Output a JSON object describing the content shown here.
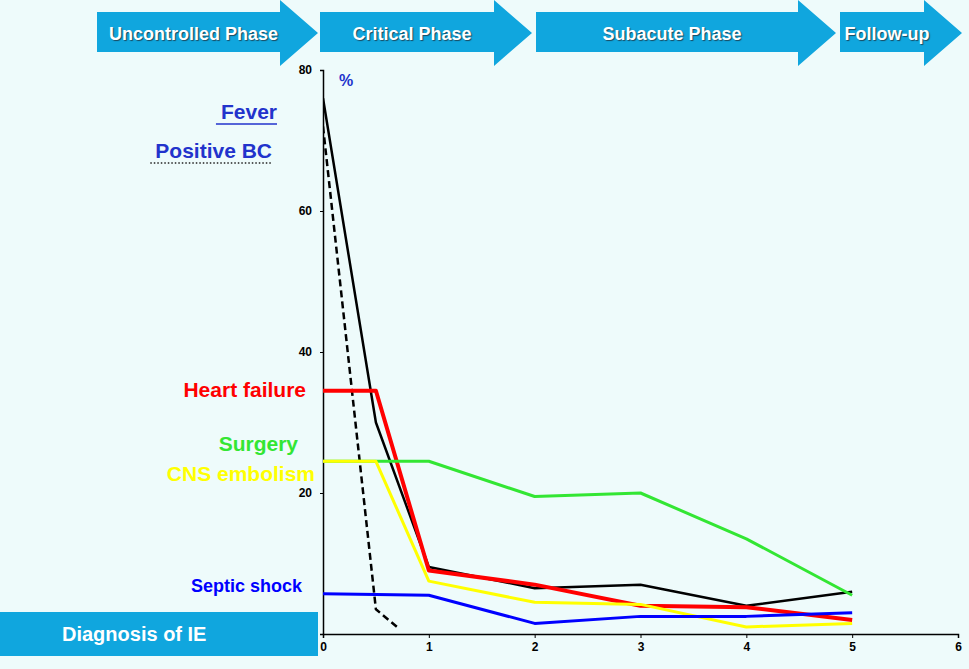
{
  "chart_data": {
    "type": "line",
    "phases": [
      "Uncontrolled Phase",
      "Critical Phase",
      "Subacute Phase",
      "Follow-up"
    ],
    "y_label": "%",
    "annotations": [
      "Diagnosis of IE"
    ],
    "xlim": [
      0,
      6
    ],
    "xticks": [
      0,
      1,
      2,
      3,
      4,
      5,
      6
    ],
    "ylim": [
      0,
      80
    ],
    "yticks": [
      20,
      40,
      60,
      80
    ],
    "series": [
      {
        "name": "Fever",
        "color": "#000000",
        "line_style": "solid",
        "x": [
          0,
          0.5,
          1,
          2,
          3,
          4,
          5
        ],
        "values": [
          76,
          30,
          9.5,
          6.5,
          7,
          4,
          6
        ]
      },
      {
        "name": "Positive BC",
        "color": "#000000",
        "line_style": "dashed",
        "x": [
          0,
          0.5,
          0.7
        ],
        "values": [
          72,
          3.5,
          1
        ]
      },
      {
        "name": "Heart failure",
        "color": "#ff0000",
        "line_style": "solid",
        "x": [
          0,
          0.5,
          1,
          2,
          3,
          4,
          5
        ],
        "values": [
          34.5,
          34.5,
          9,
          7,
          4,
          3.8,
          2
        ]
      },
      {
        "name": "Surgery",
        "color": "#33e633",
        "line_style": "solid",
        "x": [
          0,
          1,
          2,
          3,
          4,
          5
        ],
        "values": [
          24.5,
          24.5,
          19.5,
          20,
          13.5,
          5.5
        ]
      },
      {
        "name": "CNS embolism",
        "color": "#ffff00",
        "line_style": "solid",
        "x": [
          0,
          0.5,
          1,
          2,
          3,
          4,
          5
        ],
        "values": [
          24.5,
          24.5,
          7.5,
          4.5,
          4.2,
          1,
          1.5
        ]
      },
      {
        "name": "Septic shock",
        "color": "#0000ff",
        "line_style": "solid",
        "x": [
          0,
          1,
          2,
          3,
          4,
          5
        ],
        "values": [
          5.7,
          5.5,
          1.5,
          2.5,
          2.5,
          3
        ]
      }
    ]
  }
}
